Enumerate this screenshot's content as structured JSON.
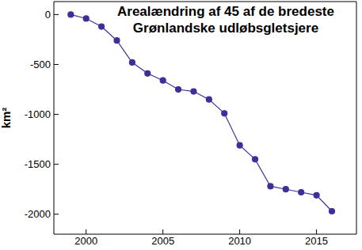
{
  "chart_data": {
    "type": "line",
    "title": [
      "Arealændring af 45 af de bredeste",
      "Grønlandske udløbsgletsjere"
    ],
    "y_label": "km²",
    "x": [
      1999,
      2000,
      2001,
      2002,
      2003,
      2004,
      2005,
      2006,
      2007,
      2008,
      2009,
      2010,
      2011,
      2012,
      2013,
      2014,
      2015,
      2016
    ],
    "values": [
      0,
      -40,
      -120,
      -260,
      -480,
      -590,
      -660,
      -750,
      -770,
      -850,
      -990,
      -1310,
      -1450,
      -1720,
      -1750,
      -1780,
      -1810,
      -1970
    ],
    "color": "#3d2f99",
    "marker": "circle",
    "xlim": [
      1997.9,
      2017.6
    ],
    "xticks": [
      2000,
      2005,
      2010,
      2015
    ],
    "ylim": [
      -2200,
      130
    ],
    "yticks": [
      0,
      -500,
      -1000,
      -1500,
      -2000
    ],
    "grid": false
  }
}
